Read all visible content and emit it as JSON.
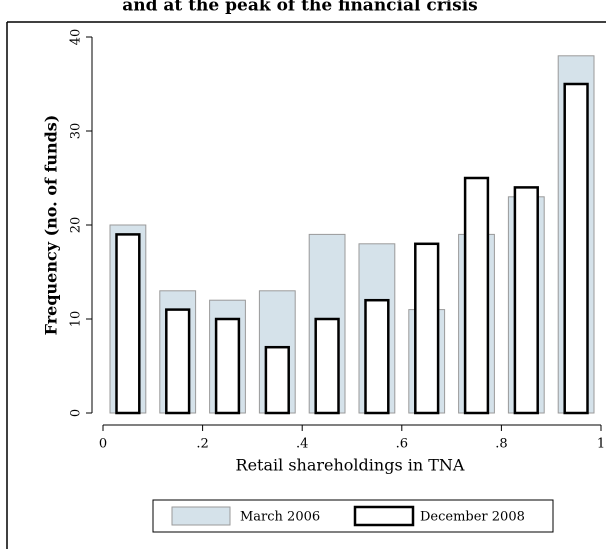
{
  "chart_data": {
    "type": "histogram",
    "title": "and at the peak of the financial crisis",
    "x_label": "Retail shareholdings in TNA",
    "y_label": "Frequency (no. of funds)",
    "bins": [
      0,
      0.1,
      0.2,
      0.3,
      0.4,
      0.5,
      0.6,
      0.7,
      0.8,
      0.9,
      1
    ],
    "series": [
      {
        "name": "March 2006",
        "color": "#d5e2ea",
        "values": [
          20,
          13,
          12,
          13,
          19,
          18,
          11,
          19,
          23,
          38
        ]
      },
      {
        "name": "December 2008",
        "color": "#ffffff",
        "values": [
          19,
          11,
          10,
          7,
          10,
          12,
          18,
          25,
          24,
          35
        ]
      }
    ],
    "xlim": [
      0,
      1
    ],
    "xticks": [
      0,
      {
        "value": 0.2,
        "label": ".2"
      },
      {
        "value": 0.4,
        "label": ".4"
      },
      {
        "value": 0.6,
        "label": ".6"
      },
      {
        "value": 0.8,
        "label": ".8"
      },
      1
    ],
    "ylim": [
      0,
      40
    ],
    "yticks": [
      0,
      10,
      20,
      30,
      40
    ],
    "legend": "bottom"
  }
}
